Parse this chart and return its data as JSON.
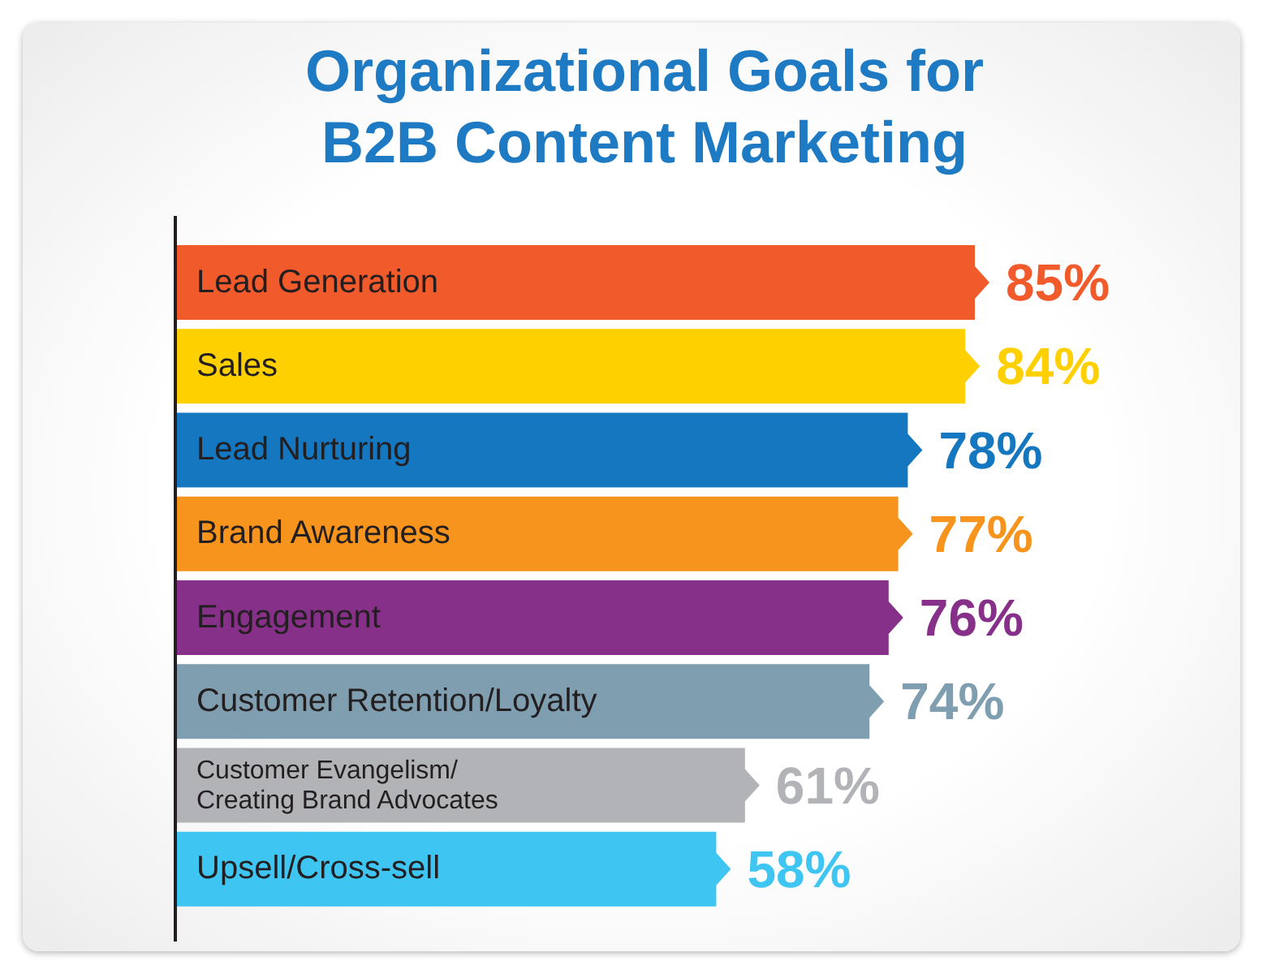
{
  "chart_data": {
    "type": "bar",
    "orientation": "horizontal",
    "title": "Organizational Goals for B2B Content Marketing",
    "categories": [
      "Lead Generation",
      "Sales",
      "Lead Nurturing",
      "Brand Awareness",
      "Engagement",
      "Customer Retention/Loyalty",
      "Customer Evangelism/\nCreating Brand Advocates",
      "Upsell/Cross-sell"
    ],
    "values": [
      85,
      84,
      78,
      77,
      76,
      74,
      61,
      58
    ],
    "colors": [
      "#f15a2b",
      "#ffd000",
      "#1477bf",
      "#f7941d",
      "#87308a",
      "#7f9fb1",
      "#b1b3b6",
      "#3ec5f1"
    ],
    "value_labels": [
      "85%",
      "84%",
      "78%",
      "77%",
      "76%",
      "74%",
      "61%",
      "58%"
    ],
    "tick_labels": "y"
  }
}
